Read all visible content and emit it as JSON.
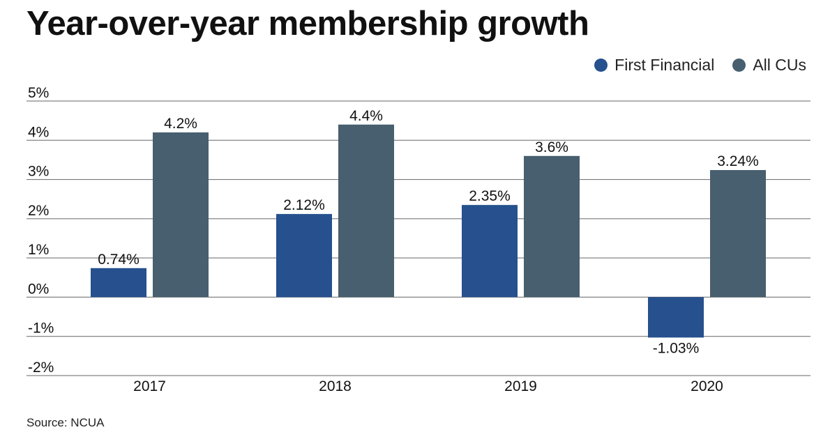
{
  "title": "Year-over-year membership growth",
  "source": "Source: NCUA",
  "colors": {
    "first_financial": "#26508e",
    "all_cus": "#475f6f",
    "gridline": "#666666",
    "text": "#111111"
  },
  "chart_data": {
    "type": "bar",
    "title": "Year-over-year membership growth",
    "categories": [
      "2017",
      "2018",
      "2019",
      "2020"
    ],
    "series": [
      {
        "name": "First Financial",
        "values": [
          0.74,
          2.12,
          2.35,
          -1.03
        ],
        "labels": [
          "0.74%",
          "2.12%",
          "2.35%",
          "-1.03%"
        ]
      },
      {
        "name": "All CUs",
        "values": [
          4.2,
          4.4,
          3.6,
          3.24
        ],
        "labels": [
          "4.2%",
          "4.4%",
          "3.6%",
          "3.24%"
        ]
      }
    ],
    "y_ticks": [
      5,
      4,
      3,
      2,
      1,
      0,
      -1,
      -2
    ],
    "y_tick_labels": [
      "5%",
      "4%",
      "3%",
      "2%",
      "1%",
      "0%",
      "-1%",
      "-2%"
    ],
    "ylim": [
      -2,
      5
    ],
    "xlabel": "",
    "ylabel": "",
    "grid": true,
    "legend_position": "top-right",
    "source": "Source: NCUA"
  }
}
